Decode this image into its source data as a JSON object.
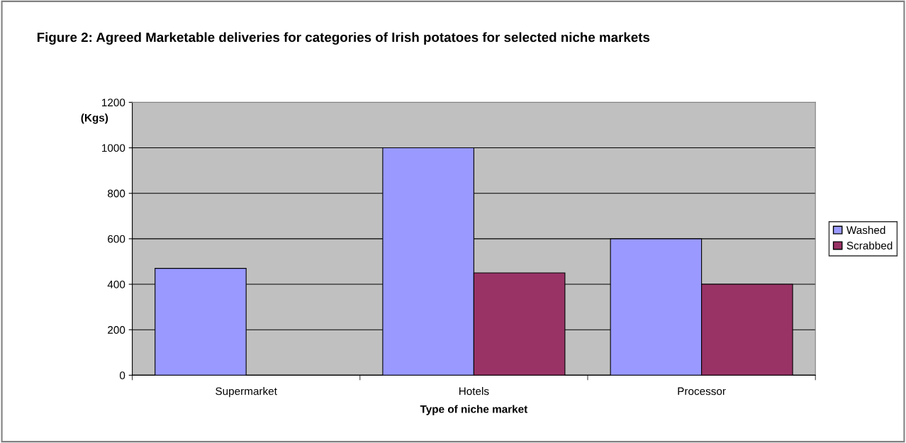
{
  "chart_data": {
    "type": "bar",
    "title": "Figure 2: Agreed Marketable deliveries for categories of Irish potatoes for selected niche markets",
    "xlabel": "Type of niche market",
    "ylabel": "(Kgs)",
    "categories": [
      "Supermarket",
      "Hotels",
      "Processor"
    ],
    "series": [
      {
        "name": "Washed",
        "color": "#9999ff",
        "values": [
          470,
          1000,
          600
        ]
      },
      {
        "name": "Scrabbed",
        "color": "#993366",
        "values": [
          null,
          450,
          400
        ]
      }
    ],
    "ylim": [
      0,
      1200
    ],
    "yticks": [
      0,
      200,
      400,
      600,
      800,
      1000,
      1200
    ],
    "grid": "y",
    "legend": "right"
  }
}
